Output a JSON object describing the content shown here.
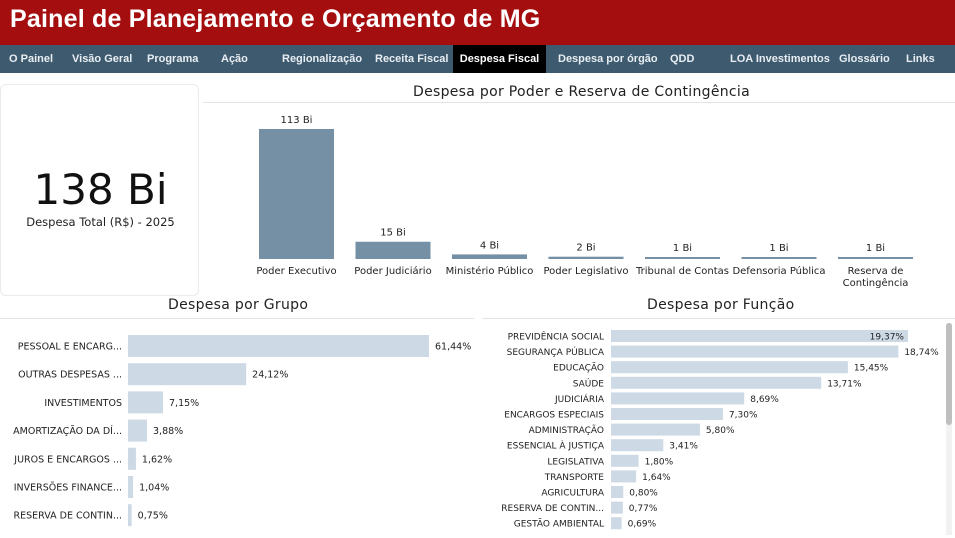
{
  "header": {
    "title": "Painel de Planejamento e Orçamento de MG"
  },
  "nav": {
    "items": [
      "O Painel",
      "Visão Geral",
      "Programa",
      "Ação",
      "Regionalização",
      "Receita Fiscal",
      "Despesa Fiscal",
      "Despesa por órgão",
      "QDD",
      "LOA Investimentos",
      "Glossário",
      "Links"
    ],
    "active": "Despesa Fiscal"
  },
  "kpi": {
    "value": "138 Bi",
    "label": "Despesa Total (R$) - 2025"
  },
  "colors": {
    "brand_red": "#a50e0e",
    "nav_bg": "#3e5a6e",
    "bar_dark": "#7590a5",
    "bar_light": "#cdd9e5"
  },
  "chart_data": [
    {
      "type": "bar",
      "title": "Despesa por Poder e Reserva de Contingência",
      "categories": [
        "Poder Executivo",
        "Poder Judiciário",
        "Ministério Público",
        "Poder Legislativo",
        "Tribunal de Contas",
        "Defensoria Pública",
        "Reserva de Contingência"
      ],
      "values": [
        113,
        15,
        4,
        2,
        1,
        1,
        1
      ],
      "data_labels": [
        "113 Bi",
        "15 Bi",
        "4 Bi",
        "2 Bi",
        "1 Bi",
        "1 Bi",
        "1 Bi"
      ],
      "unit": "Bi"
    },
    {
      "type": "bar",
      "orientation": "horizontal",
      "title": "Despesa por Grupo",
      "categories": [
        "PESSOAL E ENCARG...",
        "OUTRAS DESPESAS ...",
        "INVESTIMENTOS",
        "AMORTIZAÇÃO DA DÍ...",
        "JUROS E ENCARGOS ...",
        "INVERSÕES FINANCE...",
        "RESERVA DE CONTIN..."
      ],
      "values": [
        61.44,
        24.12,
        7.15,
        3.88,
        1.62,
        1.04,
        0.75
      ],
      "data_labels": [
        "61,44%",
        "24,12%",
        "7,15%",
        "3,88%",
        "1,62%",
        "1,04%",
        "0,75%"
      ]
    },
    {
      "type": "bar",
      "orientation": "horizontal",
      "title": "Despesa por Função",
      "categories": [
        "PREVIDÊNCIA SOCIAL",
        "SEGURANÇA PÚBLICA",
        "EDUCAÇÃO",
        "SAÚDE",
        "JUDICIÁRIA",
        "ENCARGOS ESPECIAIS",
        "ADMINISTRAÇÃO",
        "ESSENCIAL À JUSTIÇA",
        "LEGISLATIVA",
        "TRANSPORTE",
        "AGRICULTURA",
        "RESERVA DE CONTIN...",
        "GESTÃO AMBIENTAL"
      ],
      "values": [
        19.37,
        18.74,
        15.45,
        13.71,
        8.69,
        7.3,
        5.8,
        3.41,
        1.8,
        1.64,
        0.8,
        0.77,
        0.69
      ],
      "data_labels": [
        "19,37%",
        "18,74%",
        "15,45%",
        "13,71%",
        "8,69%",
        "7,30%",
        "5,80%",
        "3,41%",
        "1,80%",
        "1,64%",
        "0,80%",
        "0,77%",
        "0,69%"
      ]
    }
  ]
}
